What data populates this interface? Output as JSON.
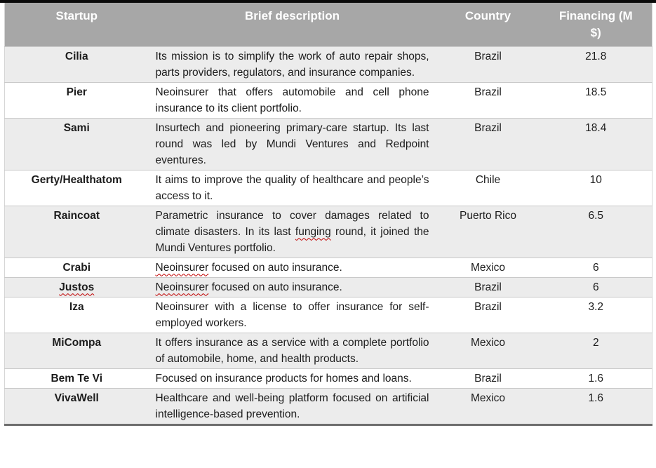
{
  "colors": {
    "header_bg": "#a7a7a7",
    "header_text": "#ffffff",
    "row_alt_bg": "#ececec",
    "row_bg": "#ffffff",
    "body_text": "#1c1c1c",
    "spellcheck_squiggle": "#c00000",
    "top_rule": "#0a0a0a",
    "bottom_border": "#6e6e6e",
    "row_border": "#c9c9c9"
  },
  "header": {
    "columns": [
      "Startup",
      "Brief description",
      "Country",
      "Financing (M\n$)"
    ]
  },
  "rows": [
    {
      "startup": "Cilia",
      "description": "Its mission is to simplify the work of auto repair shops, parts providers, regulators, and insurance companies.",
      "country": "Brazil",
      "financing": "21.8"
    },
    {
      "startup": "Pier",
      "description": "Neoinsurer that offers automobile and cell phone insurance to its client portfolio.",
      "country": "Brazil",
      "financing": "18.5"
    },
    {
      "startup": "Sami",
      "description": "Insurtech and pioneering primary-care startup. Its last round was led by Mundi Ventures and Redpoint eventures.",
      "country": "Brazil",
      "financing": "18.4"
    },
    {
      "startup": "Gerty/Healthatom",
      "description": "It aims to improve the quality of healthcare and people’s access to it.",
      "country": "Chile",
      "financing": "10"
    },
    {
      "startup": "Raincoat",
      "description": "Parametric insurance to cover damages related to climate disasters. In its last funging round, it joined the Mundi Ventures portfolio.",
      "country": "Puerto Rico",
      "financing": "6.5",
      "misspelled_words": [
        "funging"
      ]
    },
    {
      "startup": "Crabi",
      "description": "Neoinsurer focused on auto insurance.",
      "country": "Mexico",
      "financing": "6",
      "misspelled_words": [
        "Neoinsurer"
      ]
    },
    {
      "startup": "Justos",
      "startup_misspelled": true,
      "description": "Neoinsurer focused on auto insurance.",
      "country": "Brazil",
      "financing": "6",
      "misspelled_words": [
        "Neoinsurer"
      ]
    },
    {
      "startup": "Iza",
      "description": "Neoinsurer with a license to offer insurance for self-employed workers.",
      "country": "Brazil",
      "financing": "3.2"
    },
    {
      "startup": "MiCompa",
      "description": "It offers insurance as a service with a complete portfolio of automobile, home, and health products.",
      "country": "Mexico",
      "financing": "2"
    },
    {
      "startup": "Bem Te Vi",
      "description": "Focused on insurance products for homes and loans.",
      "country": "Brazil",
      "financing": "1.6"
    },
    {
      "startup": "VivaWell",
      "description": "Healthcare and well-being platform focused on artificial intelligence-based prevention.",
      "country": "Mexico",
      "financing": "1.6"
    }
  ]
}
